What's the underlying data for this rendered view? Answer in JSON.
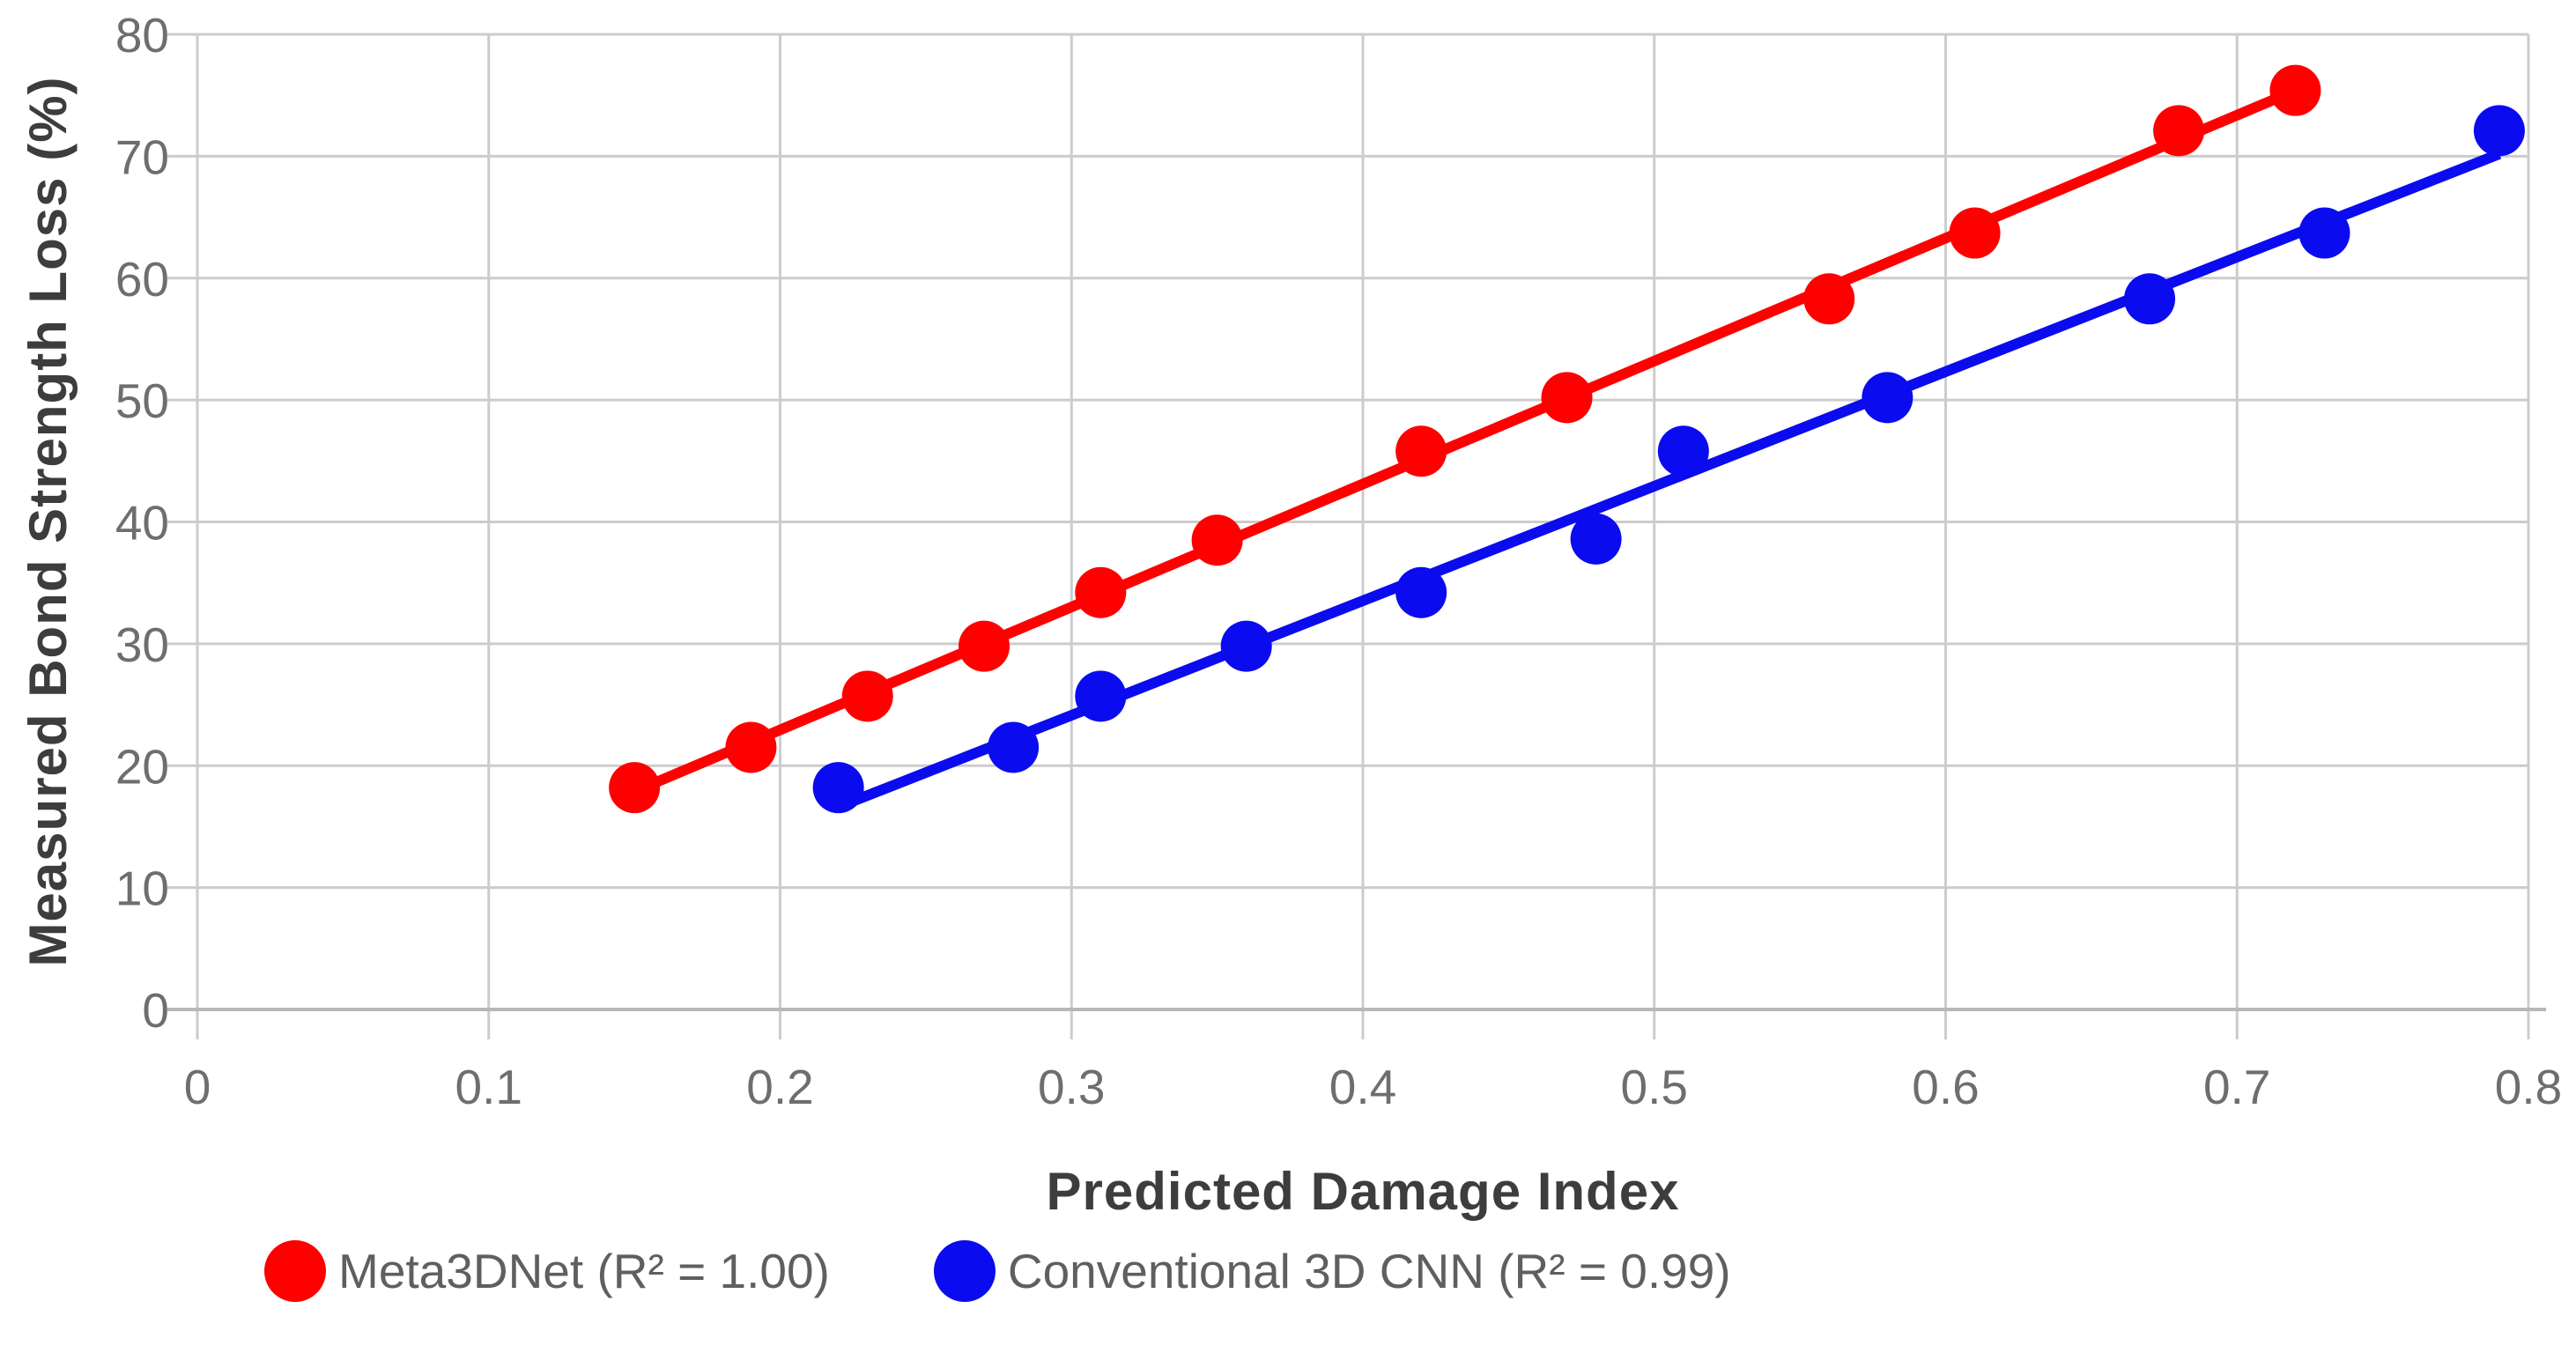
{
  "chart_data": {
    "type": "scatter",
    "title": "",
    "xlabel": "Predicted Damage Index",
    "ylabel": "Measured Bond Strength Loss (%)",
    "xlim": [
      0,
      0.8
    ],
    "ylim": [
      0,
      80
    ],
    "grid": true,
    "legend_position": "bottom",
    "x_ticks": [
      0,
      0.1,
      0.2,
      0.3,
      0.4,
      0.5,
      0.6,
      0.7,
      0.8
    ],
    "x_tick_labels": [
      "0",
      "0.1",
      "0.2",
      "0.3",
      "0.4",
      "0.5",
      "0.6",
      "0.7",
      "0.8"
    ],
    "y_ticks": [
      0,
      10,
      20,
      30,
      40,
      50,
      60,
      70,
      80
    ],
    "y_tick_labels": [
      "0",
      "10",
      "20",
      "30",
      "40",
      "50",
      "60",
      "70",
      "80"
    ],
    "colors": {
      "grid": "#cccccc",
      "axis_line": "#b7b7b7",
      "tick_label": "#6e6e6e"
    },
    "series": [
      {
        "name": "Meta3DNet (R² = 1.00)",
        "color": "#fe0000",
        "r_squared": "1.00",
        "points": [
          [
            0.15,
            18.2
          ],
          [
            0.19,
            21.5
          ],
          [
            0.23,
            25.7
          ],
          [
            0.27,
            29.8
          ],
          [
            0.31,
            34.2
          ],
          [
            0.35,
            38.5
          ],
          [
            0.42,
            45.8
          ],
          [
            0.47,
            50.2
          ],
          [
            0.56,
            58.3
          ],
          [
            0.61,
            63.7
          ],
          [
            0.68,
            72.1
          ],
          [
            0.72,
            75.4
          ]
        ],
        "trendline": {
          "slope": 100.87,
          "intercept": 2.76,
          "x_start": 0.15,
          "x_end": 0.72
        }
      },
      {
        "name": "Conventional 3D CNN (R² = 0.99)",
        "color": "#0b0bf0",
        "r_squared": "0.99",
        "points": [
          [
            0.22,
            18.2
          ],
          [
            0.28,
            21.5
          ],
          [
            0.31,
            25.7
          ],
          [
            0.36,
            29.8
          ],
          [
            0.42,
            34.2
          ],
          [
            0.48,
            38.6
          ],
          [
            0.51,
            45.8
          ],
          [
            0.58,
            50.2
          ],
          [
            0.67,
            58.3
          ],
          [
            0.73,
            63.7
          ],
          [
            0.79,
            72.1
          ]
        ],
        "trendline": {
          "slope": 93.98,
          "intercept": -4.06,
          "x_start": 0.22,
          "x_end": 0.79
        }
      }
    ]
  }
}
